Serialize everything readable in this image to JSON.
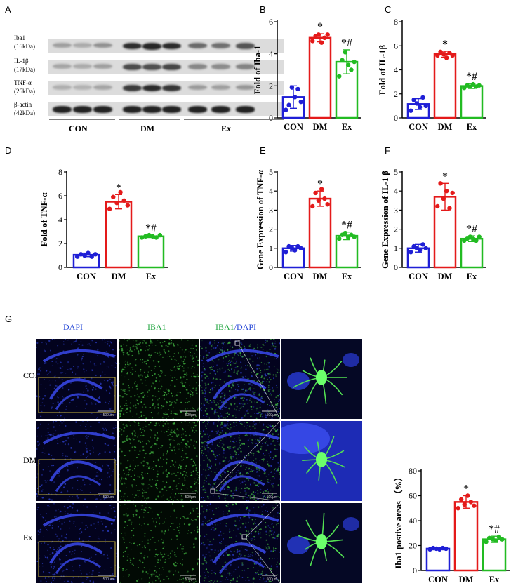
{
  "panel_letters": {
    "A": "A",
    "B": "B",
    "C": "C",
    "D": "D",
    "E": "E",
    "F": "F",
    "G": "G"
  },
  "blot": {
    "rows": [
      "Iba1",
      "(16kDa)",
      "IL-1β",
      "(17kDa)",
      "TNF-α",
      "(26kDa)",
      "β-actin",
      "(42kDa)"
    ],
    "intensity": [
      [
        0.28,
        0.22,
        0.35,
        0.85,
        0.88,
        0.86,
        0.55,
        0.52,
        0.65
      ],
      [
        0.25,
        0.22,
        0.28,
        0.7,
        0.68,
        0.72,
        0.4,
        0.38,
        0.42
      ],
      [
        0.2,
        0.18,
        0.25,
        0.78,
        0.86,
        0.8,
        0.3,
        0.28,
        0.32
      ],
      [
        0.9,
        0.9,
        0.9,
        0.9,
        0.9,
        0.9,
        0.9,
        0.9,
        0.9
      ]
    ],
    "groups": [
      "CON",
      "DM",
      "Ex"
    ]
  },
  "colors": {
    "con": "#1f1fd6",
    "dm": "#e41a1a",
    "ex": "#22bb22"
  },
  "chart_data": [
    {
      "id": "B",
      "type": "bar",
      "categories": [
        "CON",
        "DM",
        "Ex"
      ],
      "values": [
        1.3,
        5.0,
        3.5
      ],
      "sd": [
        0.7,
        0.25,
        0.75
      ],
      "points": [
        [
          0.5,
          0.8,
          1.9,
          1.3,
          1.8,
          1.0
        ],
        [
          4.8,
          5.1,
          5.2,
          4.7,
          5.0,
          5.2
        ],
        [
          2.6,
          3.6,
          4.1,
          3.3,
          3.0,
          3.5
        ]
      ],
      "marks": [
        "",
        "*",
        "*#"
      ],
      "ylabel": "Fold of Iba-1",
      "ylim": [
        0,
        6
      ],
      "yticks": [
        0,
        2,
        4,
        6
      ]
    },
    {
      "id": "C",
      "type": "bar",
      "categories": [
        "CON",
        "DM",
        "Ex"
      ],
      "values": [
        1.15,
        5.3,
        2.65
      ],
      "sd": [
        0.45,
        0.25,
        0.2
      ],
      "points": [
        [
          0.6,
          1.5,
          1.2,
          0.9,
          1.7,
          1.0
        ],
        [
          5.2,
          5.5,
          5.3,
          5.0,
          5.4,
          5.2
        ],
        [
          2.5,
          2.7,
          2.6,
          2.8,
          2.6,
          2.7
        ]
      ],
      "marks": [
        "",
        "*",
        "*#"
      ],
      "ylabel": "Fold of IL-1β",
      "ylim": [
        0,
        8
      ],
      "yticks": [
        0,
        2,
        4,
        6,
        8
      ]
    },
    {
      "id": "D",
      "type": "bar",
      "categories": [
        "CON",
        "DM",
        "Ex"
      ],
      "values": [
        1.05,
        5.5,
        2.6
      ],
      "sd": [
        0.15,
        0.6,
        0.1
      ],
      "points": [
        [
          0.9,
          1.1,
          1.0,
          1.2,
          0.9,
          1.1
        ],
        [
          4.9,
          5.9,
          5.4,
          6.3,
          5.6,
          5.2
        ],
        [
          2.5,
          2.6,
          2.7,
          2.6,
          2.5,
          2.7
        ]
      ],
      "marks": [
        "",
        "*",
        "*#"
      ],
      "ylabel": "Fold of TNF-α",
      "ylim": [
        0,
        8
      ],
      "yticks": [
        0,
        2,
        4,
        6,
        8
      ]
    },
    {
      "id": "E",
      "type": "bar",
      "categories": [
        "CON",
        "DM",
        "Ex"
      ],
      "values": [
        1.0,
        3.6,
        1.65
      ],
      "sd": [
        0.15,
        0.4,
        0.2
      ],
      "points": [
        [
          0.8,
          1.1,
          1.0,
          0.9,
          1.1,
          1.0
        ],
        [
          3.2,
          3.9,
          3.5,
          4.1,
          3.6,
          3.3
        ],
        [
          1.5,
          1.7,
          1.8,
          1.6,
          1.7,
          1.6
        ]
      ],
      "marks": [
        "",
        "*",
        "*#"
      ],
      "ylabel": "Gene Expression of TNF-α",
      "ylim": [
        0,
        5
      ],
      "yticks": [
        0,
        1,
        2,
        3,
        4,
        5
      ]
    },
    {
      "id": "F",
      "type": "bar",
      "categories": [
        "CON",
        "DM",
        "Ex"
      ],
      "values": [
        1.0,
        3.7,
        1.5
      ],
      "sd": [
        0.2,
        0.7,
        0.15
      ],
      "points": [
        [
          0.8,
          1.1,
          1.0,
          0.9,
          1.2,
          1.0
        ],
        [
          3.2,
          4.4,
          3.6,
          4.0,
          3.1,
          3.9
        ],
        [
          1.4,
          1.5,
          1.6,
          1.5,
          1.4,
          1.6
        ]
      ],
      "marks": [
        "",
        "*",
        "*#"
      ],
      "ylabel": "Gene Expression of IL-1 β",
      "ylim": [
        0,
        5
      ],
      "yticks": [
        0,
        1,
        2,
        3,
        4,
        5
      ]
    },
    {
      "id": "G",
      "type": "bar",
      "categories": [
        "CON",
        "DM",
        "Ex"
      ],
      "values": [
        17.5,
        55,
        25
      ],
      "sd": [
        0.5,
        5,
        2.5
      ],
      "points": [
        [
          17,
          18,
          17.5,
          17,
          18,
          17.5
        ],
        [
          50,
          57,
          53,
          60,
          55,
          52
        ],
        [
          23,
          26,
          25,
          24,
          27,
          25
        ]
      ],
      "marks": [
        "",
        "*",
        "*#"
      ],
      "ylabel": "Iba1 postive areas （%）",
      "ylim": [
        0,
        80
      ],
      "yticks": [
        0,
        20,
        40,
        60,
        80
      ]
    }
  ],
  "micro": {
    "headers": {
      "dapi": "DAPI",
      "iba1": "IBA1",
      "merge_a": "IBA1",
      "merge_sep": "/",
      "merge_b": "DAPI"
    },
    "rows": [
      "CON",
      "DM",
      "Ex"
    ],
    "scale": "500μm"
  }
}
